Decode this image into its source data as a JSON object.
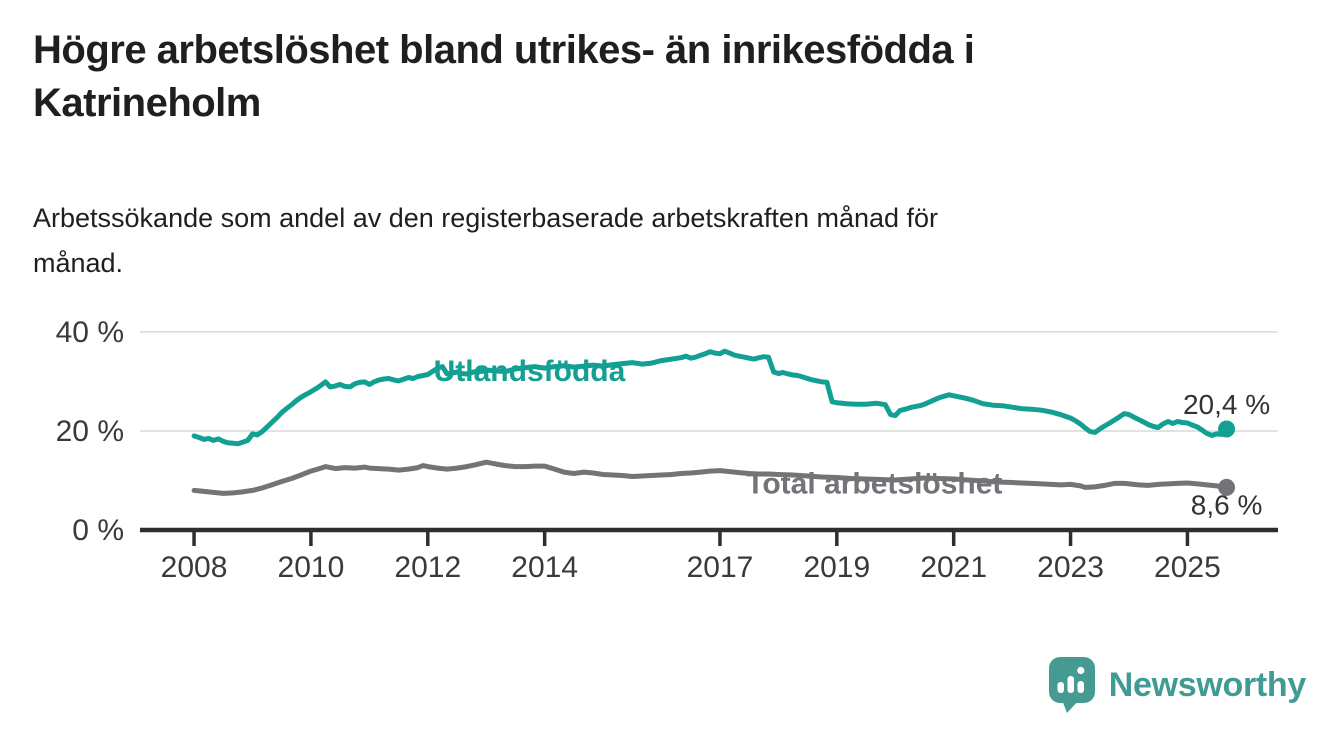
{
  "header": {
    "title_lines": [
      "Högre arbetslöshet bland utrikes- än inrikesfödda i",
      "Katrineholm"
    ],
    "subtitle_lines": [
      "Arbetssökande som andel av den registerbaserade arbetskraften månad för",
      "månad."
    ]
  },
  "footer": {
    "brand": "Newsworthy",
    "logo_icon": "speech-bubble-bar-chart-icon"
  },
  "colors": {
    "background": "#ffffff",
    "title_text": "#1f1f1f",
    "axis": "#2e2e2e",
    "grid": "#d9d9d9",
    "tick_text": "#3a3a3a",
    "series_foreign_born": "#12a092",
    "series_total": "#737378",
    "logo_teal": "#459a92",
    "brand_text": "#3f9b93"
  },
  "chart_data": {
    "type": "line",
    "title": "Högre arbetslöshet bland utrikes- än inrikesfödda i Katrineholm",
    "subtitle": "Arbetssökande som andel av den registerbaserade arbetskraften månad för månad.",
    "unit": "%",
    "grid": "horizontal",
    "legend": "inline-labels",
    "xlim": [
      2007.075,
      2026.55
    ],
    "ylim": [
      0,
      42
    ],
    "y_ticks": [
      {
        "value": 0,
        "label": "0 %"
      },
      {
        "value": 20,
        "label": "20 %"
      },
      {
        "value": 40,
        "label": "40 %"
      }
    ],
    "x_ticks": [
      {
        "value": 2008,
        "label": "2008"
      },
      {
        "value": 2010,
        "label": "2010"
      },
      {
        "value": 2012,
        "label": "2012"
      },
      {
        "value": 2014,
        "label": "2014"
      },
      {
        "value": 2017,
        "label": "2017"
      },
      {
        "value": 2019,
        "label": "2019"
      },
      {
        "value": 2021,
        "label": "2021"
      },
      {
        "value": 2023,
        "label": "2023"
      },
      {
        "value": 2025,
        "label": "2025"
      }
    ],
    "series": [
      {
        "id": "utlandsfodda",
        "name": "Utlandsfödda",
        "color": "#12a092",
        "end_value": 20.4,
        "end_label": "20,4 %",
        "end_label_side": "above",
        "label_anchor": {
          "x": 2012.1,
          "y": 32.3,
          "align": "start"
        },
        "points": [
          [
            2008.0,
            19.0
          ],
          [
            2008.08,
            18.7
          ],
          [
            2008.17,
            18.3
          ],
          [
            2008.25,
            18.5
          ],
          [
            2008.33,
            18.1
          ],
          [
            2008.42,
            18.4
          ],
          [
            2008.5,
            17.9
          ],
          [
            2008.58,
            17.6
          ],
          [
            2008.67,
            17.5
          ],
          [
            2008.75,
            17.4
          ],
          [
            2008.83,
            17.7
          ],
          [
            2008.92,
            18.1
          ],
          [
            2009.0,
            19.4
          ],
          [
            2009.08,
            19.2
          ],
          [
            2009.17,
            19.9
          ],
          [
            2009.25,
            20.8
          ],
          [
            2009.33,
            21.7
          ],
          [
            2009.42,
            22.7
          ],
          [
            2009.5,
            23.7
          ],
          [
            2009.58,
            24.5
          ],
          [
            2009.67,
            25.3
          ],
          [
            2009.75,
            26.1
          ],
          [
            2009.83,
            26.8
          ],
          [
            2009.92,
            27.4
          ],
          [
            2010.0,
            27.9
          ],
          [
            2010.08,
            28.5
          ],
          [
            2010.17,
            29.2
          ],
          [
            2010.25,
            29.9
          ],
          [
            2010.33,
            28.9
          ],
          [
            2010.42,
            29.1
          ],
          [
            2010.5,
            29.4
          ],
          [
            2010.58,
            29.0
          ],
          [
            2010.67,
            28.9
          ],
          [
            2010.75,
            29.5
          ],
          [
            2010.83,
            29.8
          ],
          [
            2010.92,
            29.9
          ],
          [
            2011.0,
            29.4
          ],
          [
            2011.08,
            29.9
          ],
          [
            2011.17,
            30.3
          ],
          [
            2011.25,
            30.5
          ],
          [
            2011.33,
            30.6
          ],
          [
            2011.42,
            30.3
          ],
          [
            2011.5,
            30.1
          ],
          [
            2011.58,
            30.4
          ],
          [
            2011.67,
            30.8
          ],
          [
            2011.75,
            30.6
          ],
          [
            2011.83,
            31.0
          ],
          [
            2011.92,
            31.2
          ],
          [
            2012.0,
            31.4
          ],
          [
            2012.08,
            32.0
          ],
          [
            2012.17,
            32.7
          ],
          [
            2012.25,
            33.0
          ],
          [
            2012.33,
            31.5
          ],
          [
            2012.42,
            31.7
          ],
          [
            2012.5,
            31.9
          ],
          [
            2012.58,
            31.6
          ],
          [
            2012.67,
            31.5
          ],
          [
            2012.75,
            31.8
          ],
          [
            2012.83,
            32.0
          ],
          [
            2012.92,
            32.2
          ],
          [
            2013.0,
            32.3
          ],
          [
            2013.17,
            32.1
          ],
          [
            2013.33,
            32.0
          ],
          [
            2013.5,
            32.5
          ],
          [
            2013.67,
            32.8
          ],
          [
            2013.83,
            33.0
          ],
          [
            2014.0,
            32.7
          ],
          [
            2014.17,
            33.0
          ],
          [
            2014.33,
            33.2
          ],
          [
            2014.5,
            32.9
          ],
          [
            2014.67,
            33.1
          ],
          [
            2014.83,
            33.3
          ],
          [
            2015.0,
            33.1
          ],
          [
            2015.17,
            33.4
          ],
          [
            2015.33,
            33.6
          ],
          [
            2015.5,
            33.8
          ],
          [
            2015.67,
            33.5
          ],
          [
            2015.83,
            33.7
          ],
          [
            2016.0,
            34.2
          ],
          [
            2016.17,
            34.5
          ],
          [
            2016.33,
            34.8
          ],
          [
            2016.42,
            35.1
          ],
          [
            2016.5,
            34.7
          ],
          [
            2016.58,
            34.9
          ],
          [
            2016.67,
            35.3
          ],
          [
            2016.75,
            35.6
          ],
          [
            2016.83,
            36.0
          ],
          [
            2016.92,
            35.7
          ],
          [
            2017.0,
            35.6
          ],
          [
            2017.08,
            36.1
          ],
          [
            2017.17,
            35.7
          ],
          [
            2017.25,
            35.3
          ],
          [
            2017.33,
            35.1
          ],
          [
            2017.42,
            34.9
          ],
          [
            2017.5,
            34.7
          ],
          [
            2017.58,
            34.5
          ],
          [
            2017.67,
            34.8
          ],
          [
            2017.75,
            35.0
          ],
          [
            2017.83,
            34.9
          ],
          [
            2017.92,
            31.9
          ],
          [
            2018.0,
            31.6
          ],
          [
            2018.08,
            31.8
          ],
          [
            2018.17,
            31.5
          ],
          [
            2018.25,
            31.3
          ],
          [
            2018.33,
            31.2
          ],
          [
            2018.42,
            30.9
          ],
          [
            2018.5,
            30.6
          ],
          [
            2018.58,
            30.3
          ],
          [
            2018.67,
            30.1
          ],
          [
            2018.75,
            29.9
          ],
          [
            2018.83,
            29.8
          ],
          [
            2018.92,
            25.9
          ],
          [
            2019.0,
            25.7
          ],
          [
            2019.17,
            25.5
          ],
          [
            2019.33,
            25.4
          ],
          [
            2019.5,
            25.4
          ],
          [
            2019.67,
            25.6
          ],
          [
            2019.83,
            25.3
          ],
          [
            2019.92,
            23.3
          ],
          [
            2020.0,
            23.1
          ],
          [
            2020.08,
            24.1
          ],
          [
            2020.17,
            24.4
          ],
          [
            2020.25,
            24.7
          ],
          [
            2020.33,
            24.9
          ],
          [
            2020.42,
            25.1
          ],
          [
            2020.5,
            25.4
          ],
          [
            2020.58,
            25.8
          ],
          [
            2020.67,
            26.3
          ],
          [
            2020.75,
            26.7
          ],
          [
            2020.83,
            27.0
          ],
          [
            2020.92,
            27.3
          ],
          [
            2021.0,
            27.1
          ],
          [
            2021.17,
            26.7
          ],
          [
            2021.33,
            26.2
          ],
          [
            2021.5,
            25.5
          ],
          [
            2021.67,
            25.2
          ],
          [
            2021.83,
            25.1
          ],
          [
            2022.0,
            24.8
          ],
          [
            2022.17,
            24.5
          ],
          [
            2022.33,
            24.4
          ],
          [
            2022.5,
            24.2
          ],
          [
            2022.67,
            23.8
          ],
          [
            2022.83,
            23.3
          ],
          [
            2023.0,
            22.6
          ],
          [
            2023.08,
            22.1
          ],
          [
            2023.17,
            21.4
          ],
          [
            2023.25,
            20.6
          ],
          [
            2023.33,
            19.9
          ],
          [
            2023.42,
            19.7
          ],
          [
            2023.5,
            20.4
          ],
          [
            2023.58,
            21.0
          ],
          [
            2023.67,
            21.6
          ],
          [
            2023.75,
            22.2
          ],
          [
            2023.83,
            22.8
          ],
          [
            2023.92,
            23.5
          ],
          [
            2024.0,
            23.3
          ],
          [
            2024.08,
            22.8
          ],
          [
            2024.17,
            22.3
          ],
          [
            2024.25,
            21.8
          ],
          [
            2024.33,
            21.3
          ],
          [
            2024.42,
            20.9
          ],
          [
            2024.5,
            20.7
          ],
          [
            2024.58,
            21.4
          ],
          [
            2024.67,
            21.9
          ],
          [
            2024.75,
            21.5
          ],
          [
            2024.83,
            21.9
          ],
          [
            2024.92,
            21.7
          ],
          [
            2025.0,
            21.6
          ],
          [
            2025.08,
            21.2
          ],
          [
            2025.17,
            20.8
          ],
          [
            2025.25,
            20.2
          ],
          [
            2025.33,
            19.5
          ],
          [
            2025.42,
            19.1
          ],
          [
            2025.5,
            19.4
          ],
          [
            2025.58,
            19.3
          ],
          [
            2025.67,
            20.4
          ]
        ]
      },
      {
        "id": "total",
        "name": "Total arbetslöshet",
        "color": "#737378",
        "end_value": 8.6,
        "end_label": "8,6 %",
        "end_label_side": "below",
        "label_anchor": {
          "x": 2017.45,
          "y": 9.6,
          "align": "start"
        },
        "points": [
          [
            2008.0,
            8.0
          ],
          [
            2008.17,
            7.8
          ],
          [
            2008.33,
            7.6
          ],
          [
            2008.5,
            7.4
          ],
          [
            2008.67,
            7.5
          ],
          [
            2008.83,
            7.7
          ],
          [
            2009.0,
            8.0
          ],
          [
            2009.17,
            8.5
          ],
          [
            2009.33,
            9.1
          ],
          [
            2009.5,
            9.8
          ],
          [
            2009.67,
            10.4
          ],
          [
            2009.83,
            11.1
          ],
          [
            2010.0,
            11.9
          ],
          [
            2010.17,
            12.5
          ],
          [
            2010.25,
            12.8
          ],
          [
            2010.42,
            12.4
          ],
          [
            2010.58,
            12.6
          ],
          [
            2010.75,
            12.5
          ],
          [
            2010.92,
            12.7
          ],
          [
            2011.0,
            12.5
          ],
          [
            2011.17,
            12.4
          ],
          [
            2011.33,
            12.3
          ],
          [
            2011.5,
            12.1
          ],
          [
            2011.67,
            12.3
          ],
          [
            2011.83,
            12.6
          ],
          [
            2011.92,
            13.0
          ],
          [
            2012.0,
            12.8
          ],
          [
            2012.17,
            12.5
          ],
          [
            2012.33,
            12.3
          ],
          [
            2012.5,
            12.5
          ],
          [
            2012.67,
            12.8
          ],
          [
            2012.83,
            13.2
          ],
          [
            2013.0,
            13.7
          ],
          [
            2013.17,
            13.3
          ],
          [
            2013.33,
            13.0
          ],
          [
            2013.5,
            12.8
          ],
          [
            2013.67,
            12.8
          ],
          [
            2013.83,
            12.9
          ],
          [
            2014.0,
            12.9
          ],
          [
            2014.17,
            12.3
          ],
          [
            2014.33,
            11.7
          ],
          [
            2014.5,
            11.4
          ],
          [
            2014.67,
            11.7
          ],
          [
            2014.83,
            11.5
          ],
          [
            2015.0,
            11.2
          ],
          [
            2015.17,
            11.1
          ],
          [
            2015.33,
            11.0
          ],
          [
            2015.5,
            10.8
          ],
          [
            2015.67,
            10.9
          ],
          [
            2015.83,
            11.0
          ],
          [
            2016.0,
            11.1
          ],
          [
            2016.17,
            11.2
          ],
          [
            2016.33,
            11.4
          ],
          [
            2016.5,
            11.5
          ],
          [
            2016.67,
            11.7
          ],
          [
            2016.83,
            11.9
          ],
          [
            2017.0,
            12.0
          ],
          [
            2017.17,
            11.8
          ],
          [
            2017.33,
            11.6
          ],
          [
            2017.5,
            11.4
          ],
          [
            2017.67,
            11.3
          ],
          [
            2017.83,
            11.3
          ],
          [
            2018.0,
            11.2
          ],
          [
            2018.25,
            11.1
          ],
          [
            2018.5,
            10.9
          ],
          [
            2018.75,
            10.7
          ],
          [
            2019.0,
            10.6
          ],
          [
            2019.25,
            10.4
          ],
          [
            2019.5,
            10.3
          ],
          [
            2019.75,
            10.2
          ],
          [
            2020.0,
            10.1
          ],
          [
            2020.25,
            10.3
          ],
          [
            2020.5,
            10.5
          ],
          [
            2020.75,
            10.4
          ],
          [
            2021.0,
            10.3
          ],
          [
            2021.25,
            10.1
          ],
          [
            2021.5,
            9.9
          ],
          [
            2021.75,
            9.7
          ],
          [
            2022.0,
            9.6
          ],
          [
            2022.17,
            9.5
          ],
          [
            2022.33,
            9.4
          ],
          [
            2022.5,
            9.3
          ],
          [
            2022.67,
            9.2
          ],
          [
            2022.83,
            9.1
          ],
          [
            2023.0,
            9.2
          ],
          [
            2023.17,
            8.9
          ],
          [
            2023.25,
            8.6
          ],
          [
            2023.42,
            8.7
          ],
          [
            2023.58,
            9.0
          ],
          [
            2023.75,
            9.4
          ],
          [
            2023.92,
            9.4
          ],
          [
            2024.0,
            9.3
          ],
          [
            2024.17,
            9.1
          ],
          [
            2024.33,
            9.0
          ],
          [
            2024.5,
            9.2
          ],
          [
            2024.67,
            9.3
          ],
          [
            2024.83,
            9.4
          ],
          [
            2025.0,
            9.5
          ],
          [
            2025.17,
            9.3
          ],
          [
            2025.33,
            9.1
          ],
          [
            2025.5,
            8.9
          ],
          [
            2025.67,
            8.6
          ]
        ]
      }
    ]
  }
}
